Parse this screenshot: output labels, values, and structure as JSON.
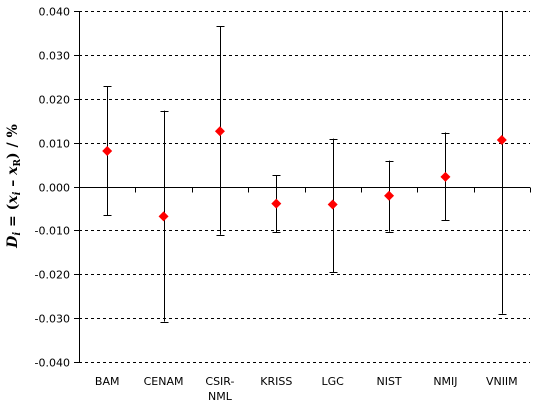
{
  "chart_data": {
    "type": "scatter",
    "ylabel_parts": [
      "D",
      "i",
      " = (",
      "x",
      "i",
      " – ",
      "x",
      "R",
      ") / %"
    ],
    "categories": [
      "BAM",
      "CENAM",
      "CSIR-NML",
      "KRISS",
      "LGC",
      "NIST",
      "NMIJ",
      "VNIIM"
    ],
    "category_label_lines": [
      [
        "BAM"
      ],
      [
        "CENAM"
      ],
      [
        "CSIR-",
        "NML"
      ],
      [
        "KRISS"
      ],
      [
        "LGC"
      ],
      [
        "NIST"
      ],
      [
        "NMIJ"
      ],
      [
        "VNIIM"
      ]
    ],
    "values": [
      0.0081,
      -0.0068,
      0.0126,
      -0.0039,
      -0.0041,
      -0.0021,
      0.0022,
      0.0106
    ],
    "err_low": [
      -0.0065,
      -0.0308,
      -0.011,
      -0.0104,
      -0.0196,
      -0.0103,
      -0.0077,
      -0.029
    ],
    "err_high": [
      0.0229,
      0.0173,
      0.0365,
      0.0026,
      0.0109,
      0.0059,
      0.0123,
      0.0415
    ],
    "ylim": [
      -0.04,
      0.04
    ],
    "yticks": [
      "-0.040",
      "-0.030",
      "-0.020",
      "-0.010",
      "0.000",
      "0.010",
      "0.020",
      "0.030",
      "0.040"
    ],
    "ytick_values": [
      -0.04,
      -0.03,
      -0.02,
      -0.01,
      0,
      0.01,
      0.02,
      0.03,
      0.04
    ],
    "grid": "horizontal-dashed",
    "marker_color": "#ff0000",
    "marker": "diamond"
  }
}
